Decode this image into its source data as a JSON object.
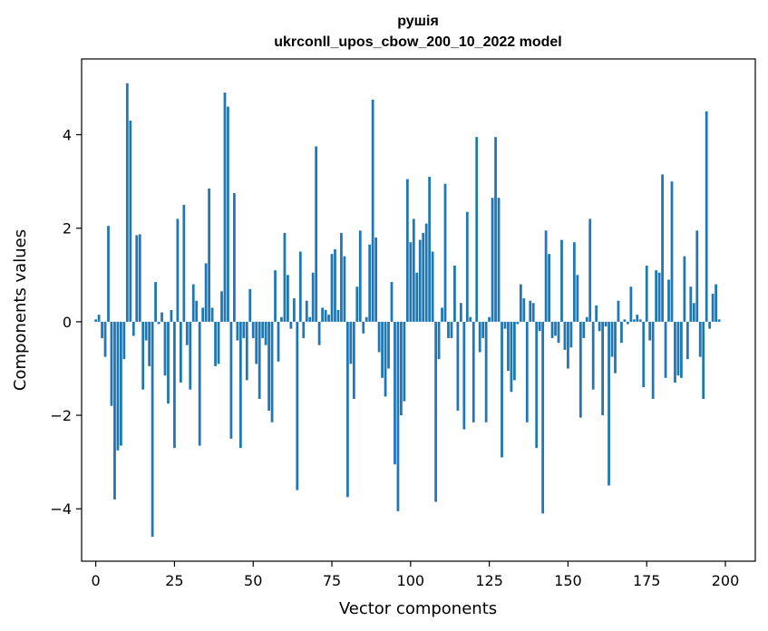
{
  "chart_data": {
    "type": "bar",
    "title": "рушія",
    "subtitle": "ukrconll_upos_cbow_200_10_2022 model",
    "xlabel": "Vector components",
    "ylabel": "Components values",
    "xlim": [
      -4.5,
      209.5
    ],
    "ylim": [
      -5.12,
      5.62
    ],
    "xticks": [
      0,
      25,
      50,
      75,
      100,
      125,
      150,
      175,
      200
    ],
    "yticks": [
      -4,
      -2,
      0,
      2,
      4
    ],
    "ytick_labels": [
      "−4",
      "−2",
      "0",
      "2",
      "4"
    ],
    "grid": false,
    "bar_color": "#1f77b4",
    "x_start": 0,
    "values": [
      0.05,
      0.15,
      -0.35,
      -0.75,
      2.05,
      -1.8,
      -3.8,
      -2.75,
      -2.65,
      -0.8,
      5.1,
      4.3,
      -0.3,
      1.85,
      1.87,
      -1.45,
      -0.4,
      -0.95,
      -4.6,
      0.85,
      -0.05,
      0.2,
      -1.15,
      -1.75,
      0.25,
      -2.7,
      2.2,
      -1.3,
      2.5,
      -0.5,
      -1.45,
      0.8,
      0.45,
      -2.65,
      0.3,
      1.25,
      2.85,
      0.3,
      -0.95,
      -0.9,
      0.65,
      4.9,
      4.6,
      -2.5,
      2.75,
      -0.4,
      -2.7,
      -0.35,
      -1.25,
      0.7,
      -0.35,
      -0.9,
      -1.65,
      -0.35,
      -0.5,
      -1.9,
      -2.15,
      1.1,
      -0.85,
      0.1,
      1.9,
      1.0,
      -0.15,
      0.5,
      -3.6,
      1.5,
      -0.35,
      0.45,
      0.1,
      1.05,
      3.75,
      -0.5,
      0.3,
      0.25,
      0.15,
      1.45,
      1.55,
      0.25,
      1.9,
      1.4,
      -3.75,
      -0.9,
      -1.65,
      0.75,
      1.95,
      -0.25,
      0.1,
      1.65,
      4.75,
      1.8,
      -0.65,
      -1.2,
      -1.6,
      -1.0,
      0.85,
      -3.05,
      -4.05,
      -2.0,
      -1.7,
      3.05,
      1.7,
      2.2,
      1.05,
      1.75,
      1.9,
      2.1,
      3.1,
      1.5,
      -3.85,
      -0.8,
      0.3,
      2.95,
      -0.35,
      -0.35,
      1.2,
      -1.9,
      0.4,
      -2.3,
      2.35,
      0.1,
      -2.15,
      3.95,
      -0.65,
      -0.35,
      -2.15,
      0.1,
      2.65,
      3.95,
      2.65,
      -2.9,
      -0.15,
      -1.05,
      -1.5,
      -1.25,
      -0.05,
      0.8,
      0.5,
      -2.15,
      0.45,
      0.4,
      -2.7,
      -0.2,
      -4.1,
      1.95,
      1.45,
      -0.35,
      -0.3,
      -0.45,
      1.75,
      -0.6,
      -1.0,
      -0.55,
      1.7,
      1.0,
      -2.05,
      -0.35,
      0.1,
      2.2,
      -1.45,
      0.35,
      -0.2,
      -2.0,
      -0.1,
      -3.5,
      -0.75,
      -1.1,
      0.45,
      -0.45,
      0.05,
      -0.05,
      0.75,
      0.05,
      0.15,
      0.05,
      -1.4,
      1.2,
      -0.4,
      -1.65,
      1.1,
      1.05,
      3.15,
      -1.2,
      0.9,
      3.0,
      -1.3,
      -1.15,
      -1.2,
      1.4,
      -0.8,
      0.75,
      0.4,
      1.95,
      -0.75,
      -1.65,
      4.5,
      -0.15,
      0.6,
      0.8,
      0.05
    ]
  }
}
